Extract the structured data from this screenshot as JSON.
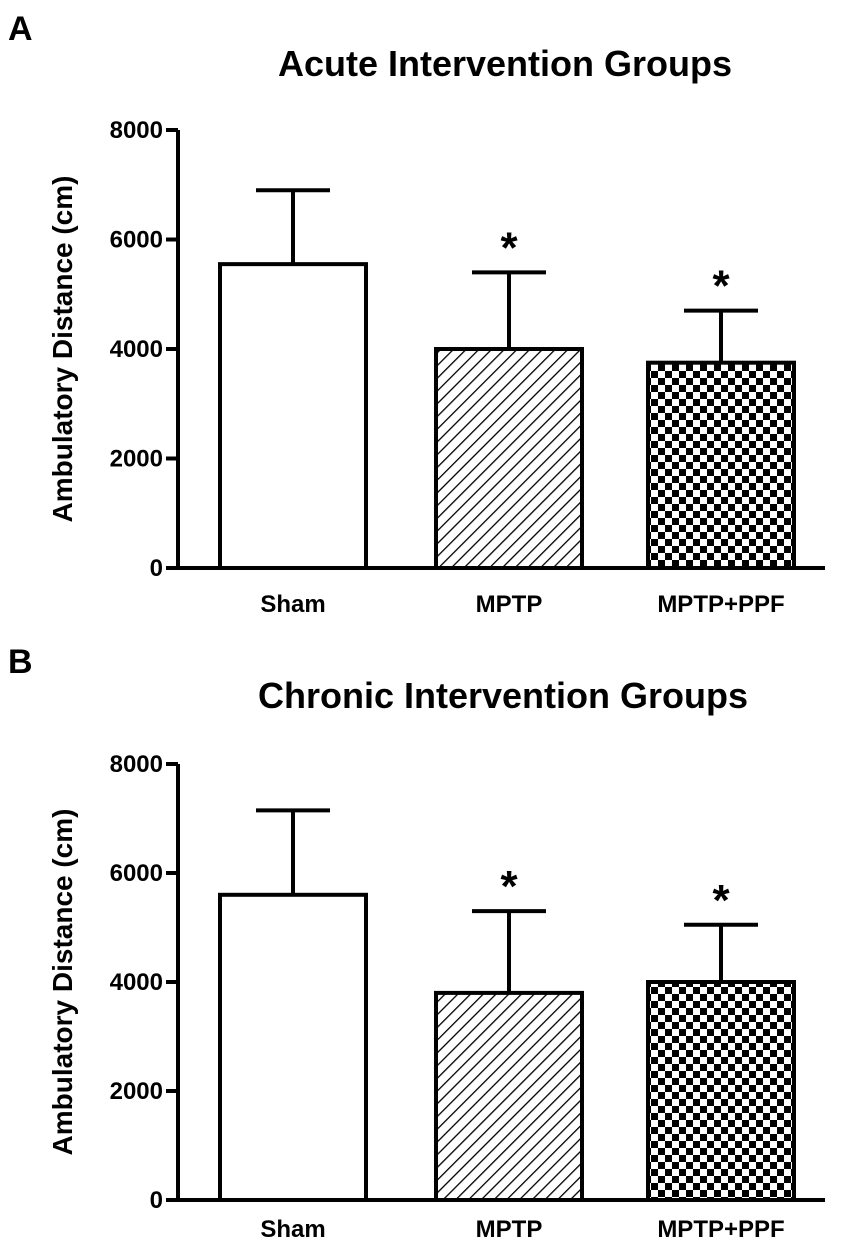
{
  "chart_data": [
    {
      "type": "bar",
      "panel_label": "A",
      "title": "Acute Intervention Groups",
      "xlabel": "",
      "ylabel": "Ambulatory Distance (cm)",
      "ylim": [
        0,
        8000
      ],
      "yticks": [
        0,
        2000,
        4000,
        6000,
        8000
      ],
      "tick_labels": [
        "0",
        "2000",
        "4000",
        "6000",
        "8000"
      ],
      "categories": [
        "Sham",
        "MPTP",
        "MPTP+PPF"
      ],
      "values": [
        5550,
        4000,
        3750
      ],
      "errors": [
        1350,
        1400,
        950
      ],
      "patterns": [
        "none",
        "diagonal-hatch",
        "checkerboard"
      ],
      "significance": [
        "",
        "*",
        "*"
      ]
    },
    {
      "type": "bar",
      "panel_label": "B",
      "title": "Chronic Intervention Groups",
      "xlabel": "",
      "ylabel": "Ambulatory Distance (cm)",
      "ylim": [
        0,
        8000
      ],
      "yticks": [
        0,
        2000,
        4000,
        6000,
        8000
      ],
      "tick_labels": [
        "0",
        "2000",
        "4000",
        "6000",
        "8000"
      ],
      "categories": [
        "Sham",
        "MPTP",
        "MPTP+PPF"
      ],
      "values": [
        5600,
        3800,
        4000
      ],
      "errors": [
        1550,
        1500,
        1050
      ],
      "patterns": [
        "none",
        "diagonal-hatch",
        "checkerboard"
      ],
      "significance": [
        "",
        "*",
        "*"
      ]
    }
  ]
}
